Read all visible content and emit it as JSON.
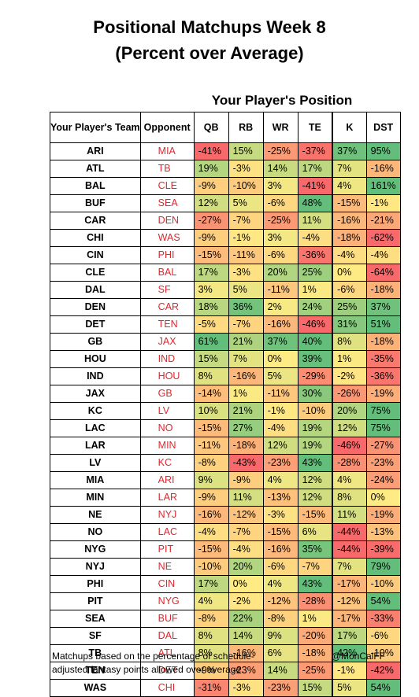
{
  "title_line1": "Positional Matchups Week 8",
  "title_line2": "(Percent over Average)",
  "position_header": "Your Player's Position",
  "footnote_line1": "Matchups based on the percentage of schedule-",
  "footnote_line2": "adjusted fantasy points allowed over average.",
  "handle": "@MonCalFF",
  "chart_data": {
    "type": "table",
    "columns": [
      "Your Player's Team",
      "Opponent",
      "QB",
      "RB",
      "WR",
      "TE",
      "K",
      "DST"
    ],
    "rows": [
      {
        "team": "ARI",
        "opp": "MIA",
        "v": [
          "-41%",
          "15%",
          "-25%",
          "-37%",
          "37%",
          "95%"
        ]
      },
      {
        "team": "ATL",
        "opp": "TB",
        "v": [
          "19%",
          "-3%",
          "14%",
          "17%",
          "7%",
          "-16%"
        ]
      },
      {
        "team": "BAL",
        "opp": "CLE",
        "v": [
          "-9%",
          "-10%",
          "3%",
          "-41%",
          "4%",
          "161%"
        ]
      },
      {
        "team": "BUF",
        "opp": "SEA",
        "v": [
          "12%",
          "5%",
          "-6%",
          "48%",
          "-15%",
          "-1%"
        ]
      },
      {
        "team": "CAR",
        "opp": "DEN",
        "v": [
          "-27%",
          "-7%",
          "-25%",
          "11%",
          "-16%",
          "-21%"
        ]
      },
      {
        "team": "CHI",
        "opp": "WAS",
        "v": [
          "-9%",
          "-1%",
          "3%",
          "-4%",
          "-18%",
          "-62%"
        ]
      },
      {
        "team": "CIN",
        "opp": "PHI",
        "v": [
          "-15%",
          "-11%",
          "-6%",
          "-36%",
          "-4%",
          "-4%"
        ]
      },
      {
        "team": "CLE",
        "opp": "BAL",
        "v": [
          "17%",
          "-3%",
          "20%",
          "25%",
          "0%",
          "-64%"
        ]
      },
      {
        "team": "DAL",
        "opp": "SF",
        "v": [
          "3%",
          "5%",
          "-11%",
          "1%",
          "-6%",
          "-18%"
        ]
      },
      {
        "team": "DEN",
        "opp": "CAR",
        "v": [
          "18%",
          "36%",
          "2%",
          "24%",
          "25%",
          "37%"
        ]
      },
      {
        "team": "DET",
        "opp": "TEN",
        "v": [
          "-5%",
          "-7%",
          "-16%",
          "-46%",
          "31%",
          "51%"
        ]
      },
      {
        "team": "GB",
        "opp": "JAX",
        "v": [
          "61%",
          "21%",
          "37%",
          "40%",
          "8%",
          "-18%"
        ]
      },
      {
        "team": "HOU",
        "opp": "IND",
        "v": [
          "15%",
          "7%",
          "0%",
          "39%",
          "1%",
          "-35%"
        ]
      },
      {
        "team": "IND",
        "opp": "HOU",
        "v": [
          "8%",
          "-16%",
          "5%",
          "-29%",
          "-2%",
          "-36%"
        ]
      },
      {
        "team": "JAX",
        "opp": "GB",
        "v": [
          "-14%",
          "1%",
          "-11%",
          "30%",
          "-26%",
          "-19%"
        ]
      },
      {
        "team": "KC",
        "opp": "LV",
        "v": [
          "10%",
          "21%",
          "-1%",
          "-10%",
          "20%",
          "75%"
        ]
      },
      {
        "team": "LAC",
        "opp": "NO",
        "v": [
          "-15%",
          "27%",
          "-4%",
          "19%",
          "12%",
          "75%"
        ]
      },
      {
        "team": "LAR",
        "opp": "MIN",
        "v": [
          "-11%",
          "-18%",
          "12%",
          "19%",
          "-46%",
          "-27%"
        ]
      },
      {
        "team": "LV",
        "opp": "KC",
        "v": [
          "-8%",
          "-43%",
          "-23%",
          "43%",
          "-28%",
          "-23%"
        ]
      },
      {
        "team": "MIA",
        "opp": "ARI",
        "v": [
          "9%",
          "-9%",
          "4%",
          "12%",
          "4%",
          "-24%"
        ]
      },
      {
        "team": "MIN",
        "opp": "LAR",
        "v": [
          "-9%",
          "11%",
          "-13%",
          "12%",
          "8%",
          "0%"
        ]
      },
      {
        "team": "NE",
        "opp": "NYJ",
        "v": [
          "-16%",
          "-12%",
          "-3%",
          "-15%",
          "11%",
          "-19%"
        ]
      },
      {
        "team": "NO",
        "opp": "LAC",
        "v": [
          "-4%",
          "-7%",
          "-15%",
          "6%",
          "-44%",
          "-13%"
        ]
      },
      {
        "team": "NYG",
        "opp": "PIT",
        "v": [
          "-15%",
          "-4%",
          "-16%",
          "35%",
          "-44%",
          "-39%"
        ]
      },
      {
        "team": "NYJ",
        "opp": "NE",
        "v": [
          "-10%",
          "20%",
          "-6%",
          "-7%",
          "7%",
          "79%"
        ]
      },
      {
        "team": "PHI",
        "opp": "CIN",
        "v": [
          "17%",
          "0%",
          "4%",
          "43%",
          "-17%",
          "-10%"
        ]
      },
      {
        "team": "PIT",
        "opp": "NYG",
        "v": [
          "4%",
          "-2%",
          "-12%",
          "-28%",
          "-12%",
          "54%"
        ]
      },
      {
        "team": "SEA",
        "opp": "BUF",
        "v": [
          "-8%",
          "22%",
          "-8%",
          "1%",
          "-17%",
          "-33%"
        ]
      },
      {
        "team": "SF",
        "opp": "DAL",
        "v": [
          "8%",
          "14%",
          "9%",
          "-20%",
          "17%",
          "-6%"
        ]
      },
      {
        "team": "TB",
        "opp": "ATL",
        "v": [
          "8%",
          "-16%",
          "6%",
          "-18%",
          "42%",
          "-10%"
        ]
      },
      {
        "team": "TEN",
        "opp": "DET",
        "v": [
          "-9%",
          "-23%",
          "14%",
          "-25%",
          "-1%",
          "-42%"
        ]
      },
      {
        "team": "WAS",
        "opp": "CHI",
        "v": [
          "-31%",
          "-3%",
          "-23%",
          "15%",
          "5%",
          "54%"
        ]
      }
    ],
    "color_scale": {
      "negative": "#f8696b",
      "neutral": "#ffeb84",
      "positive": "#63be7b"
    }
  }
}
